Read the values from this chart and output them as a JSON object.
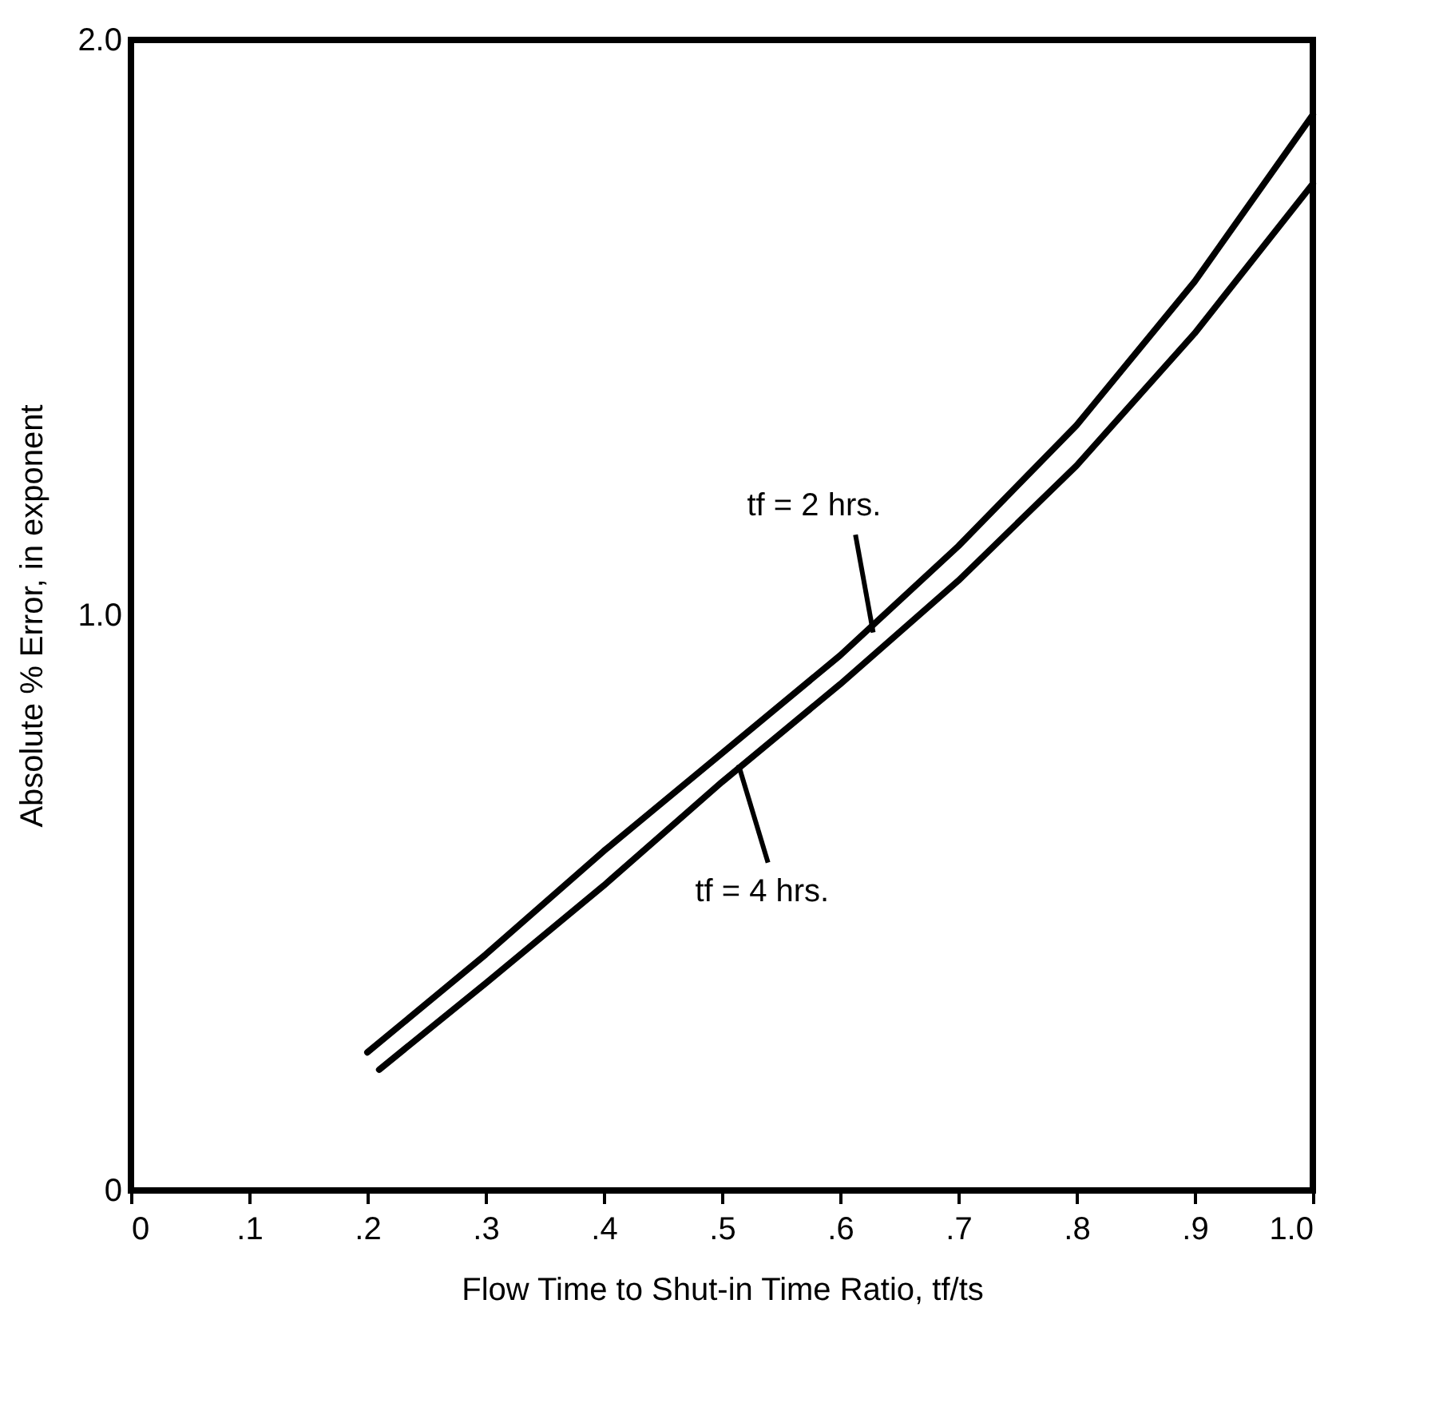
{
  "chart_data": {
    "type": "line",
    "xlabel": "Flow Time to Shut-in Time Ratio, tf/ts",
    "ylabel": "Absolute % Error, in exponent",
    "series": [
      {
        "color": "#000000",
        "x": [
          0.2,
          0.3,
          0.4,
          0.5,
          0.6,
          0.7,
          0.8,
          0.9,
          1.0
        ],
        "values": [
          0.24,
          0.41,
          0.59,
          0.76,
          0.93,
          1.12,
          1.33,
          1.58,
          1.87
        ]
      },
      {
        "color": "#000000",
        "x": [
          0.21,
          0.3,
          0.4,
          0.5,
          0.6,
          0.7,
          0.8,
          0.9,
          1.0
        ],
        "values": [
          0.21,
          0.36,
          0.53,
          0.71,
          0.88,
          1.06,
          1.26,
          1.49,
          1.75
        ]
      }
    ],
    "annotations": [
      {
        "text": "tf = 2 hrs.",
        "x": 0.628,
        "y": 0.97
      },
      {
        "text": "tf = 4 hrs.",
        "x": 0.514,
        "y": 0.74
      }
    ],
    "xlim": [
      0,
      1.0
    ],
    "xticks": [
      0,
      {
        "value": 0.1,
        "label": ".1"
      },
      {
        "value": 0.2,
        "label": ".2"
      },
      {
        "value": 0.3,
        "label": ".3"
      },
      {
        "value": 0.4,
        "label": ".4"
      },
      {
        "value": 0.5,
        "label": ".5"
      },
      {
        "value": 0.6,
        "label": ".6"
      },
      {
        "value": 0.7,
        "label": ".7"
      },
      {
        "value": 0.8,
        "label": ".8"
      },
      {
        "value": 0.9,
        "label": ".9"
      },
      {
        "value": 1.0,
        "label": "1.0"
      }
    ],
    "ylim": [
      0,
      2.0
    ],
    "yticks": [
      0,
      {
        "value": 1.0,
        "label": "1.0"
      },
      {
        "value": 2.0,
        "label": "2.0"
      }
    ],
    "grid": false,
    "line_style": "solid",
    "marker": "none"
  }
}
